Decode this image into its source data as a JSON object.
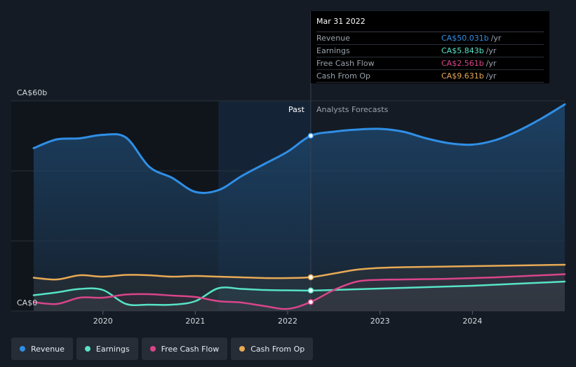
{
  "chart_data": {
    "type": "line",
    "y_top_label": "CA$60b",
    "y_bottom_label": "CA$0",
    "ylim": [
      0,
      60
    ],
    "xlim": [
      2019.25,
      2025.0
    ],
    "x_ticks": [
      {
        "value": 2020,
        "label": "2020"
      },
      {
        "value": 2021,
        "label": "2021"
      },
      {
        "value": 2022,
        "label": "2022"
      },
      {
        "value": 2023,
        "label": "2023"
      },
      {
        "value": 2024,
        "label": "2024"
      }
    ],
    "past_label": "Past",
    "forecast_label": "Analysts Forecasts",
    "divider_x": 2022.25,
    "highlight_start_x": 2021.25,
    "series": [
      {
        "name": "Revenue",
        "color": "#2f8fe6",
        "fill": true,
        "points": [
          [
            2019.25,
            46.5
          ],
          [
            2019.5,
            49.0
          ],
          [
            2019.75,
            49.3
          ],
          [
            2020.0,
            50.3
          ],
          [
            2020.25,
            49.5
          ],
          [
            2020.5,
            41.2
          ],
          [
            2020.75,
            38.0
          ],
          [
            2021.0,
            34.0
          ],
          [
            2021.25,
            34.5
          ],
          [
            2021.5,
            38.5
          ],
          [
            2021.75,
            42.0
          ],
          [
            2022.0,
            45.5
          ],
          [
            2022.25,
            50.031
          ],
          [
            2022.5,
            51.2
          ],
          [
            2022.75,
            51.8
          ],
          [
            2023.0,
            52.0
          ],
          [
            2023.25,
            51.2
          ],
          [
            2023.5,
            49.3
          ],
          [
            2023.75,
            47.9
          ],
          [
            2024.0,
            47.5
          ],
          [
            2024.25,
            48.8
          ],
          [
            2024.5,
            51.5
          ],
          [
            2024.75,
            55.0
          ],
          [
            2025.0,
            59.0
          ]
        ]
      },
      {
        "name": "Earnings",
        "color": "#57e3c6",
        "fill": false,
        "points": [
          [
            2019.25,
            4.5
          ],
          [
            2019.5,
            5.3
          ],
          [
            2019.75,
            6.3
          ],
          [
            2020.0,
            6.0
          ],
          [
            2020.25,
            2.0
          ],
          [
            2020.5,
            1.8
          ],
          [
            2020.75,
            1.8
          ],
          [
            2021.0,
            2.8
          ],
          [
            2021.25,
            6.5
          ],
          [
            2021.5,
            6.3
          ],
          [
            2021.75,
            6.0
          ],
          [
            2022.0,
            5.9
          ],
          [
            2022.25,
            5.843
          ],
          [
            2022.5,
            6.0
          ],
          [
            2022.75,
            6.2
          ],
          [
            2023.0,
            6.4
          ],
          [
            2023.25,
            6.6
          ],
          [
            2023.5,
            6.8
          ],
          [
            2023.75,
            7.0
          ],
          [
            2024.0,
            7.2
          ],
          [
            2024.25,
            7.5
          ],
          [
            2024.5,
            7.8
          ],
          [
            2024.75,
            8.1
          ],
          [
            2025.0,
            8.4
          ]
        ]
      },
      {
        "name": "Free Cash Flow",
        "color": "#d9458a",
        "fill": false,
        "points": [
          [
            2019.25,
            2.5
          ],
          [
            2019.5,
            2.0
          ],
          [
            2019.75,
            3.8
          ],
          [
            2020.0,
            3.8
          ],
          [
            2020.25,
            4.7
          ],
          [
            2020.5,
            4.8
          ],
          [
            2020.75,
            4.4
          ],
          [
            2021.0,
            4.0
          ],
          [
            2021.25,
            2.8
          ],
          [
            2021.5,
            2.4
          ],
          [
            2021.75,
            1.4
          ],
          [
            2022.0,
            0.6
          ],
          [
            2022.25,
            2.561
          ],
          [
            2022.5,
            6.0
          ],
          [
            2022.75,
            8.4
          ],
          [
            2023.0,
            8.9
          ],
          [
            2023.25,
            9.0
          ],
          [
            2023.5,
            9.1
          ],
          [
            2023.75,
            9.2
          ],
          [
            2024.0,
            9.4
          ],
          [
            2024.25,
            9.6
          ],
          [
            2024.5,
            9.9
          ],
          [
            2024.75,
            10.2
          ],
          [
            2025.0,
            10.5
          ]
        ]
      },
      {
        "name": "Cash From Op",
        "color": "#e8aa55",
        "fill": false,
        "points": [
          [
            2019.25,
            9.5
          ],
          [
            2019.5,
            9.0
          ],
          [
            2019.75,
            10.2
          ],
          [
            2020.0,
            9.8
          ],
          [
            2020.25,
            10.3
          ],
          [
            2020.5,
            10.2
          ],
          [
            2020.75,
            9.8
          ],
          [
            2021.0,
            10.0
          ],
          [
            2021.25,
            9.8
          ],
          [
            2021.5,
            9.6
          ],
          [
            2021.75,
            9.4
          ],
          [
            2022.0,
            9.4
          ],
          [
            2022.25,
            9.631
          ],
          [
            2022.5,
            10.7
          ],
          [
            2022.75,
            11.8
          ],
          [
            2023.0,
            12.3
          ],
          [
            2023.25,
            12.5
          ],
          [
            2023.5,
            12.6
          ],
          [
            2023.75,
            12.7
          ],
          [
            2024.0,
            12.8
          ],
          [
            2024.25,
            12.9
          ],
          [
            2024.5,
            13.0
          ],
          [
            2024.75,
            13.1
          ],
          [
            2025.0,
            13.2
          ]
        ]
      }
    ]
  },
  "tooltip": {
    "title": "Mar 31 2022",
    "unit": "/yr",
    "rows": [
      {
        "name": "Revenue",
        "value": "CA$50.031b",
        "color": "#2f8fe6"
      },
      {
        "name": "Earnings",
        "value": "CA$5.843b",
        "color": "#57e3c6"
      },
      {
        "name": "Free Cash Flow",
        "value": "CA$2.561b",
        "color": "#d9458a"
      },
      {
        "name": "Cash From Op",
        "value": "CA$9.631b",
        "color": "#e8aa55"
      }
    ]
  },
  "legend": [
    {
      "label": "Revenue",
      "color": "#2f8fe6"
    },
    {
      "label": "Earnings",
      "color": "#57e3c6"
    },
    {
      "label": "Free Cash Flow",
      "color": "#d9458a"
    },
    {
      "label": "Cash From Op",
      "color": "#e8aa55"
    }
  ]
}
